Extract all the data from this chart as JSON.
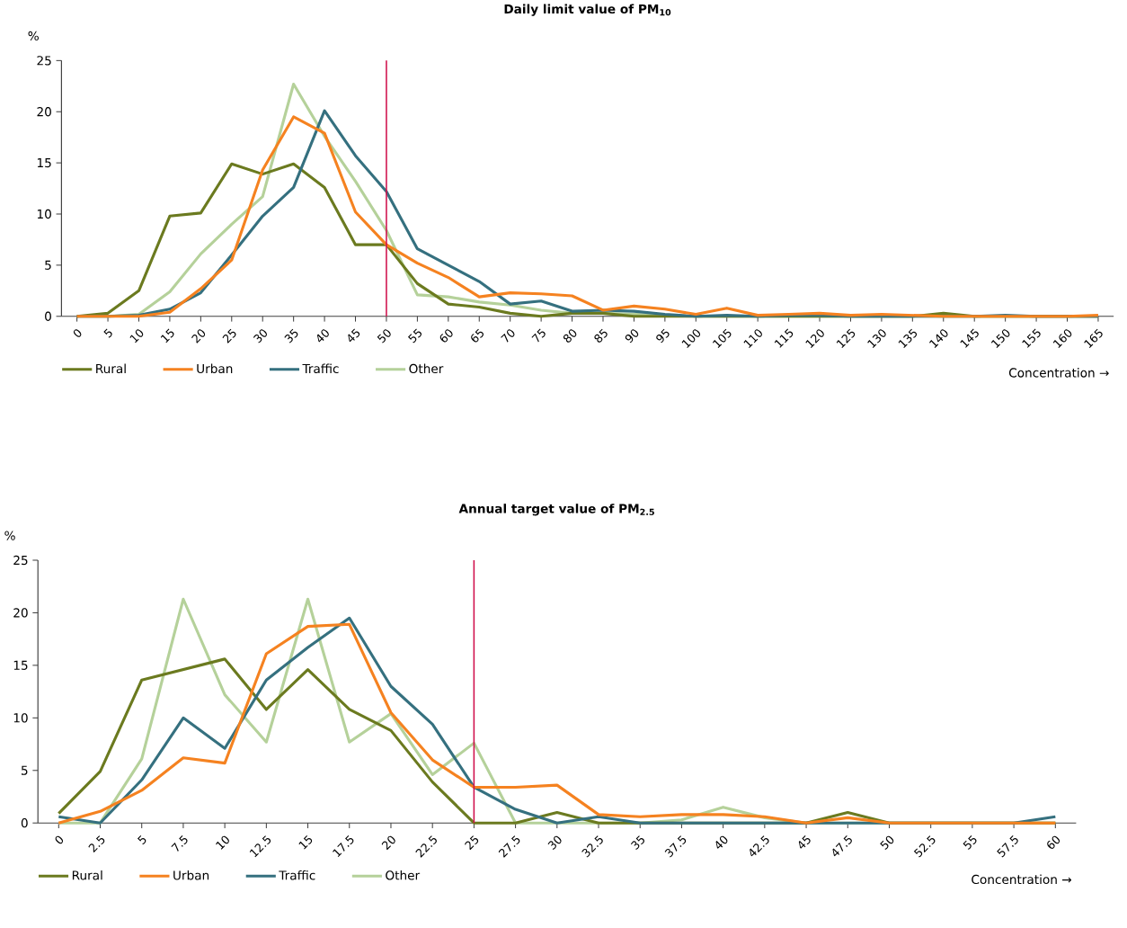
{
  "chart_data": [
    {
      "type": "line",
      "title": "Daily limit value of PM$_{10}$",
      "ylabel": "%",
      "xlabel": "Concentration →",
      "legend": "bottom left",
      "line_style": "solid",
      "x": [
        0,
        5,
        10,
        15,
        20,
        25,
        30,
        35,
        40,
        45,
        50,
        55,
        60,
        65,
        70,
        75,
        80,
        85,
        90,
        95,
        100,
        105,
        110,
        115,
        120,
        125,
        130,
        135,
        140,
        145,
        150,
        155,
        160,
        165
      ],
      "xlim": [
        -2.5,
        167.5
      ],
      "ylim": [
        0,
        25
      ],
      "xticks": [
        0,
        5,
        10,
        15,
        20,
        25,
        30,
        35,
        40,
        45,
        50,
        55,
        60,
        65,
        70,
        75,
        80,
        85,
        90,
        95,
        100,
        105,
        110,
        115,
        120,
        125,
        130,
        135,
        140,
        145,
        150,
        155,
        160,
        165
      ],
      "yticks": [
        0,
        5,
        10,
        15,
        20,
        25
      ],
      "ref_lines": [
        {
          "axis": "x",
          "value": 50,
          "color": "#d0104c"
        }
      ],
      "series": [
        {
          "name": "Rural",
          "color": "#6b7a1f",
          "values": [
            0,
            0.3,
            2.5,
            9.8,
            10.1,
            14.9,
            13.9,
            14.9,
            12.6,
            7.0,
            7.0,
            3.2,
            1.2,
            0.9,
            0.3,
            0,
            0.3,
            0.3,
            0,
            0,
            0,
            0,
            0,
            0,
            0,
            0,
            0,
            0,
            0.3,
            0,
            0,
            0,
            0,
            0
          ]
        },
        {
          "name": "Urban",
          "color": "#f58220",
          "values": [
            0,
            0,
            0,
            0.4,
            2.7,
            5.5,
            14.3,
            19.5,
            17.9,
            10.2,
            7.0,
            5.2,
            3.8,
            1.9,
            2.3,
            2.2,
            2.0,
            0.6,
            1.0,
            0.7,
            0.2,
            0.8,
            0.1,
            0.2,
            0.3,
            0.1,
            0.2,
            0.1,
            0,
            0,
            0,
            0,
            0,
            0.1
          ]
        },
        {
          "name": "Traffic",
          "color": "#35707f",
          "values": [
            0,
            0,
            0.1,
            0.7,
            2.3,
            6.0,
            9.8,
            12.6,
            20.1,
            15.7,
            12.2,
            6.6,
            5.0,
            3.4,
            1.2,
            1.5,
            0.5,
            0.6,
            0.5,
            0.2,
            0,
            0.1,
            0,
            0.1,
            0.1,
            0,
            0,
            0,
            0,
            0,
            0.1,
            0,
            0,
            0
          ]
        },
        {
          "name": "Other",
          "color": "#b5d19a",
          "values": [
            0,
            0,
            0.2,
            2.4,
            6.1,
            9.0,
            11.7,
            22.7,
            17.6,
            13.2,
            8.4,
            2.1,
            1.9,
            1.4,
            1.1,
            0.6,
            0.3,
            0.3,
            0.2,
            0.1,
            0,
            0,
            0,
            0,
            0,
            0,
            0,
            0,
            0,
            0,
            0,
            0,
            0,
            0
          ]
        }
      ]
    },
    {
      "type": "line",
      "title": "Annual target value of PM$_{2.5}$",
      "ylabel": "%",
      "xlabel": "Concentration →",
      "legend": "bottom left",
      "line_style": "solid",
      "x": [
        0,
        2.5,
        5,
        7.5,
        10,
        12.5,
        15,
        17.5,
        20,
        22.5,
        25,
        27.5,
        30,
        32.5,
        35,
        37.5,
        40,
        42.5,
        45,
        47.5,
        50,
        52.5,
        55,
        57.5,
        60
      ],
      "xlim": [
        -1.25,
        61.25
      ],
      "ylim": [
        0,
        25
      ],
      "xticks": [
        0,
        2.5,
        5,
        7.5,
        10,
        12.5,
        15,
        17.5,
        20,
        22.5,
        25,
        27.5,
        30,
        32.5,
        35,
        37.5,
        40,
        42.5,
        45,
        47.5,
        50,
        52.5,
        55,
        57.5,
        60
      ],
      "yticks": [
        0,
        5,
        10,
        15,
        20,
        25
      ],
      "ref_lines": [
        {
          "axis": "x",
          "value": 25,
          "color": "#d0104c"
        }
      ],
      "series": [
        {
          "name": "Rural",
          "color": "#6b7a1f",
          "values": [
            0.9,
            4.9,
            13.6,
            14.6,
            15.6,
            10.8,
            14.6,
            10.8,
            8.8,
            3.9,
            0,
            0,
            1.0,
            0,
            0,
            0,
            0,
            0,
            0,
            1.0,
            0,
            0,
            0,
            0,
            0
          ]
        },
        {
          "name": "Urban",
          "color": "#f58220",
          "values": [
            0,
            1.1,
            3.1,
            6.2,
            5.7,
            16.1,
            18.7,
            18.9,
            10.5,
            6.0,
            3.4,
            3.4,
            3.6,
            0.8,
            0.6,
            0.8,
            0.8,
            0.6,
            0,
            0.5,
            0,
            0,
            0,
            0,
            0
          ]
        },
        {
          "name": "Traffic",
          "color": "#35707f",
          "values": [
            0.6,
            0,
            4.1,
            10.0,
            7.1,
            13.6,
            16.7,
            19.5,
            13.0,
            9.4,
            3.4,
            1.3,
            0,
            0.6,
            0,
            0,
            0,
            0,
            0,
            0,
            0,
            0,
            0,
            0,
            0.6
          ]
        },
        {
          "name": "Other",
          "color": "#b5d19a",
          "values": [
            0,
            0,
            6.1,
            21.3,
            12.2,
            7.7,
            21.3,
            7.7,
            10.4,
            4.6,
            7.6,
            0,
            0,
            0,
            0,
            0.3,
            1.5,
            0.5,
            0,
            0,
            0,
            0,
            0,
            0,
            0
          ]
        }
      ]
    }
  ]
}
